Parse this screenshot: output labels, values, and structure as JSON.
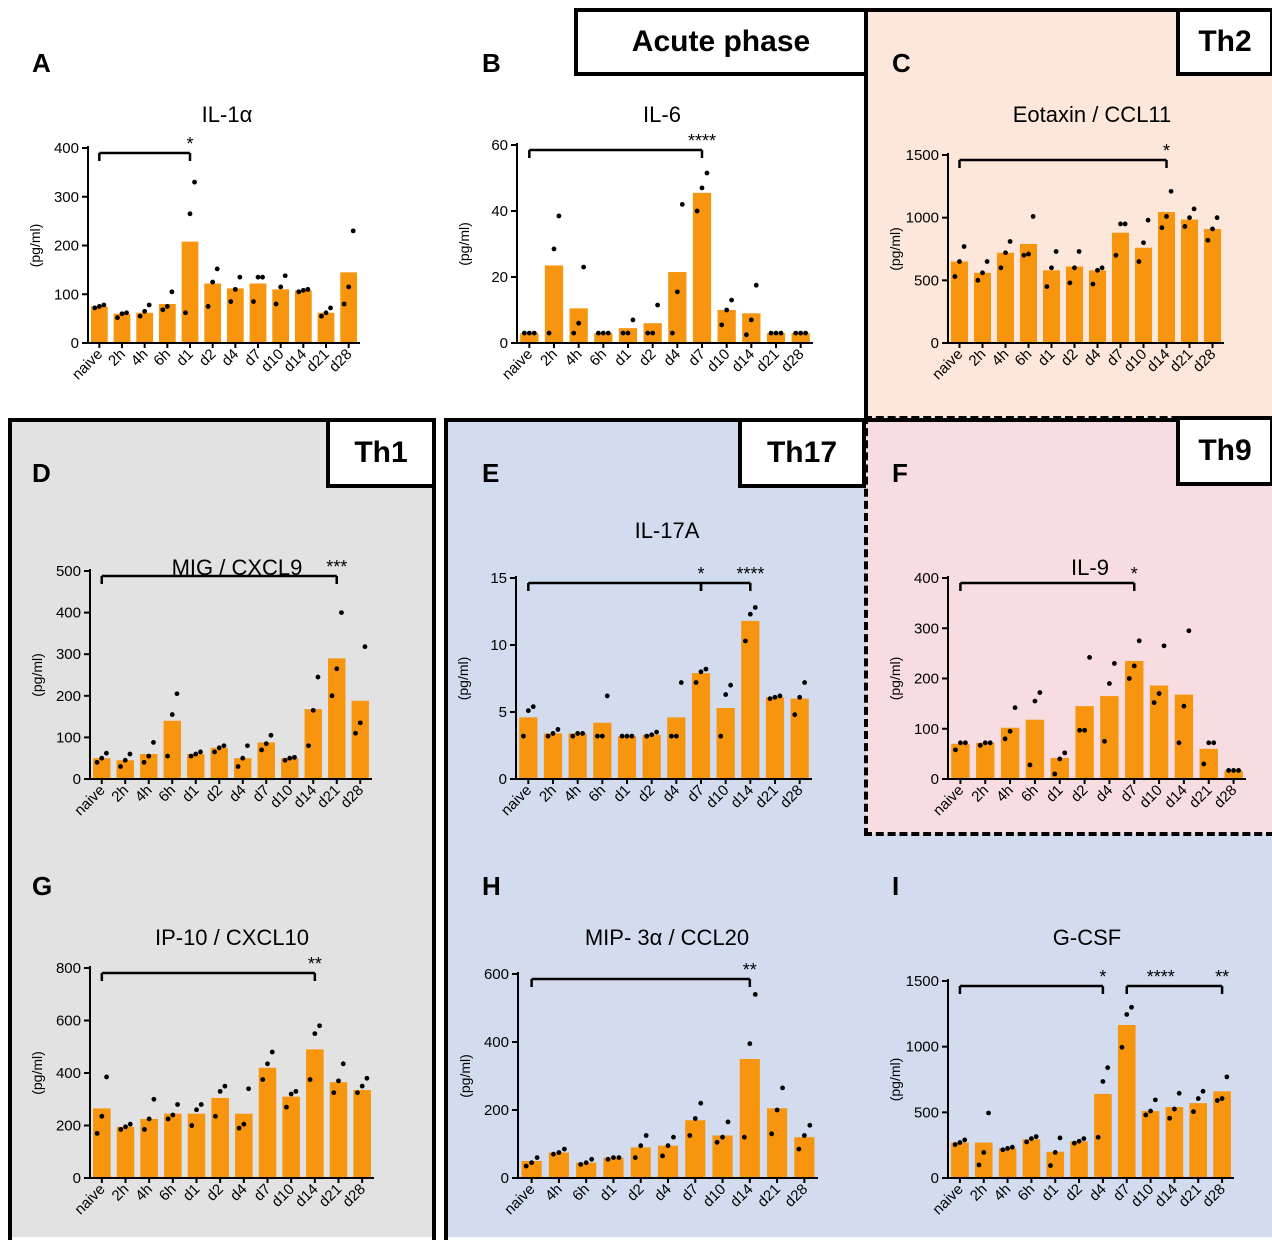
{
  "figure": {
    "ylabel_unit": "(pg/ml)",
    "bar_color": "#f7950f",
    "group_labels": {
      "acute": "Acute phase",
      "th2": "Th2",
      "th1": "Th1",
      "th17": "Th17",
      "th9": "Th9"
    },
    "group_colors": {
      "th2": "#fde7da",
      "th1": "#e2e2e2",
      "th17": "#d3dcef",
      "th9": "#f7dde2"
    }
  },
  "chart_data": [
    {
      "panel": "A",
      "type": "bar",
      "title": "IL-1α",
      "ylabel": "(pg/ml)",
      "ylim": [
        0,
        400
      ],
      "yticks": [
        0,
        100,
        200,
        300,
        400
      ],
      "categories": [
        "naive",
        "2h",
        "4h",
        "6h",
        "d1",
        "d2",
        "d4",
        "d7",
        "d10",
        "d14",
        "d21",
        "d28"
      ],
      "values": [
        75,
        60,
        62,
        80,
        208,
        122,
        112,
        122,
        110,
        108,
        62,
        145
      ],
      "points": [
        [
          72,
          75,
          78
        ],
        [
          52,
          60,
          62
        ],
        [
          55,
          65,
          78
        ],
        [
          68,
          75,
          105
        ],
        [
          62,
          265,
          330
        ],
        [
          75,
          125,
          152
        ],
        [
          85,
          110,
          135
        ],
        [
          85,
          135,
          135
        ],
        [
          80,
          115,
          138
        ],
        [
          105,
          108,
          110
        ],
        [
          55,
          62,
          72
        ],
        [
          80,
          115,
          230
        ]
      ],
      "significance": [
        {
          "from": "naive",
          "to": "d1",
          "label": "*"
        }
      ]
    },
    {
      "panel": "B",
      "type": "bar",
      "title": "IL-6",
      "ylabel": "(pg/ml)",
      "ylim": [
        0,
        60
      ],
      "yticks": [
        0,
        20,
        40,
        60
      ],
      "categories": [
        "naive",
        "2h",
        "4h",
        "6h",
        "d1",
        "d2",
        "d4",
        "d7",
        "d10",
        "d14",
        "d21",
        "d28"
      ],
      "values": [
        3,
        23.5,
        10.5,
        3,
        4.5,
        6,
        21.5,
        45.5,
        10,
        9,
        3,
        3
      ],
      "points": [
        [
          3,
          3,
          3
        ],
        [
          3,
          28.5,
          38.5
        ],
        [
          3,
          6,
          23
        ],
        [
          3,
          3,
          3
        ],
        [
          3,
          3,
          7
        ],
        [
          3,
          3,
          11.5
        ],
        [
          3,
          15.5,
          42
        ],
        [
          40,
          47,
          51.5
        ],
        [
          5.5,
          10,
          13
        ],
        [
          2.5,
          7,
          17.5
        ],
        [
          3,
          3,
          3
        ],
        [
          3,
          3,
          3
        ]
      ],
      "significance": [
        {
          "from": "naive",
          "to": "d7",
          "label": "****"
        }
      ]
    },
    {
      "panel": "C",
      "type": "bar",
      "title": "Eotaxin / CCL11",
      "ylabel": "(pg/ml)",
      "ylim": [
        0,
        1500
      ],
      "yticks": [
        0,
        500,
        1000,
        1500
      ],
      "categories": [
        "naive",
        "2h",
        "4h",
        "6h",
        "d1",
        "d2",
        "d4",
        "d7",
        "d10",
        "d14",
        "d21",
        "d28"
      ],
      "values": [
        650,
        560,
        720,
        790,
        580,
        610,
        580,
        880,
        760,
        1045,
        985,
        910
      ],
      "points": [
        [
          530,
          650,
          770
        ],
        [
          500,
          560,
          650
        ],
        [
          600,
          720,
          810
        ],
        [
          700,
          710,
          1010
        ],
        [
          450,
          600,
          730
        ],
        [
          480,
          600,
          730
        ],
        [
          470,
          580,
          600
        ],
        [
          700,
          950,
          950
        ],
        [
          650,
          800,
          980
        ],
        [
          920,
          1010,
          1210
        ],
        [
          930,
          1000,
          1070
        ],
        [
          820,
          910,
          1000
        ]
      ],
      "significance": [
        {
          "from": "naive",
          "to": "d14",
          "label": "*"
        }
      ]
    },
    {
      "panel": "D",
      "type": "bar",
      "title": "MIG / CXCL9",
      "ylabel": "(pg/ml)",
      "ylim": [
        0,
        500
      ],
      "yticks": [
        0,
        100,
        200,
        300,
        400,
        500
      ],
      "categories": [
        "naive",
        "2h",
        "4h",
        "6h",
        "d1",
        "d2",
        "d4",
        "d7",
        "d10",
        "d14",
        "d21",
        "d28"
      ],
      "values": [
        50,
        45,
        60,
        140,
        60,
        75,
        50,
        88,
        50,
        168,
        290,
        188
      ],
      "points": [
        [
          40,
          50,
          62
        ],
        [
          30,
          45,
          60
        ],
        [
          40,
          55,
          88
        ],
        [
          55,
          155,
          205
        ],
        [
          55,
          60,
          65
        ],
        [
          65,
          75,
          80
        ],
        [
          30,
          50,
          80
        ],
        [
          70,
          85,
          105
        ],
        [
          45,
          50,
          52
        ],
        [
          80,
          165,
          245
        ],
        [
          200,
          265,
          400
        ],
        [
          110,
          135,
          318
        ]
      ],
      "significance": [
        {
          "from": "naive",
          "to": "d21",
          "label": "***"
        }
      ]
    },
    {
      "panel": "E",
      "type": "bar",
      "title": "IL-17A",
      "ylabel": "(pg/ml)",
      "ylim": [
        0,
        15
      ],
      "yticks": [
        0,
        5,
        10,
        15
      ],
      "categories": [
        "naive",
        "2h",
        "4h",
        "6h",
        "d1",
        "d2",
        "d4",
        "d7",
        "d10",
        "d14",
        "d21",
        "d28"
      ],
      "values": [
        4.6,
        3.4,
        3.4,
        4.2,
        3.2,
        3.3,
        4.6,
        7.9,
        5.3,
        11.8,
        6.1,
        6.0
      ],
      "points": [
        [
          3.2,
          5.1,
          5.4
        ],
        [
          3.2,
          3.4,
          3.7
        ],
        [
          3.2,
          3.4,
          3.4
        ],
        [
          3.2,
          3.2,
          6.2
        ],
        [
          3.2,
          3.2,
          3.2
        ],
        [
          3.2,
          3.3,
          3.5
        ],
        [
          3.2,
          3.2,
          7.2
        ],
        [
          7.2,
          8.0,
          8.2
        ],
        [
          3.2,
          6.3,
          7.0
        ],
        [
          10.3,
          12.3,
          12.8
        ],
        [
          6.0,
          6.1,
          6.2
        ],
        [
          4.8,
          6.1,
          7.2
        ]
      ],
      "significance": [
        {
          "from": "naive",
          "to": "d7",
          "label": "*"
        },
        {
          "from": "d7",
          "to": "d14",
          "label": "****"
        }
      ]
    },
    {
      "panel": "F",
      "type": "bar",
      "title": "IL-9",
      "ylabel": "(pg/ml)",
      "ylim": [
        0,
        400
      ],
      "yticks": [
        0,
        100,
        200,
        300,
        400
      ],
      "categories": [
        "naive",
        "2h",
        "4h",
        "6h",
        "d1",
        "d2",
        "d4",
        "d7",
        "d10",
        "d14",
        "d21",
        "d28"
      ],
      "values": [
        70,
        72,
        102,
        118,
        42,
        145,
        165,
        235,
        186,
        168,
        60,
        17
      ],
      "points": [
        [
          58,
          72,
          72
        ],
        [
          67,
          72,
          72
        ],
        [
          80,
          95,
          142
        ],
        [
          28,
          155,
          172
        ],
        [
          10,
          40,
          52
        ],
        [
          97,
          97,
          242
        ],
        [
          75,
          190,
          230
        ],
        [
          200,
          225,
          275
        ],
        [
          152,
          170,
          265
        ],
        [
          72,
          145,
          295
        ],
        [
          30,
          72,
          72
        ],
        [
          17,
          17,
          17
        ]
      ],
      "significance": [
        {
          "from": "naive",
          "to": "d7",
          "label": "*"
        }
      ]
    },
    {
      "panel": "G",
      "type": "bar",
      "title": "IP-10 / CXCL10",
      "ylabel": "(pg/ml)",
      "ylim": [
        0,
        800
      ],
      "yticks": [
        0,
        200,
        400,
        600,
        800
      ],
      "categories": [
        "naive",
        "2h",
        "4h",
        "6h",
        "d1",
        "d2",
        "d4",
        "d7",
        "d10",
        "d14",
        "d21",
        "d28"
      ],
      "values": [
        265,
        195,
        225,
        245,
        245,
        305,
        245,
        420,
        310,
        490,
        365,
        335
      ],
      "points": [
        [
          170,
          235,
          385
        ],
        [
          185,
          195,
          205
        ],
        [
          185,
          225,
          300
        ],
        [
          225,
          240,
          280
        ],
        [
          200,
          260,
          280
        ],
        [
          235,
          330,
          350
        ],
        [
          190,
          205,
          340
        ],
        [
          375,
          435,
          480
        ],
        [
          270,
          320,
          330
        ],
        [
          375,
          550,
          580
        ],
        [
          325,
          370,
          435
        ],
        [
          325,
          350,
          380
        ]
      ],
      "significance": [
        {
          "from": "naive",
          "to": "d14",
          "label": "**"
        }
      ]
    },
    {
      "panel": "H",
      "type": "bar",
      "title": "MIP- 3α / CCL20",
      "ylabel": "(pg/ml)",
      "ylim": [
        0,
        600
      ],
      "yticks": [
        0,
        200,
        400,
        600
      ],
      "categories": [
        "naive",
        "4h",
        "6h",
        "d1",
        "d2",
        "d4",
        "d7",
        "d10",
        "d14",
        "d21",
        "d28"
      ],
      "values": [
        50,
        75,
        45,
        60,
        90,
        95,
        170,
        125,
        350,
        205,
        120
      ],
      "points": [
        [
          35,
          45,
          60
        ],
        [
          70,
          75,
          85
        ],
        [
          40,
          45,
          55
        ],
        [
          55,
          60,
          60
        ],
        [
          60,
          95,
          125
        ],
        [
          65,
          95,
          120
        ],
        [
          125,
          175,
          220
        ],
        [
          105,
          120,
          165
        ],
        [
          120,
          395,
          540
        ],
        [
          130,
          200,
          265
        ],
        [
          85,
          125,
          155
        ]
      ],
      "significance": [
        {
          "from": "naive",
          "to": "d14",
          "label": "**"
        }
      ]
    },
    {
      "panel": "I",
      "type": "bar",
      "title": "G-CSF",
      "ylabel": "(pg/ml)",
      "ylim": [
        0,
        1500
      ],
      "yticks": [
        0,
        500,
        1000,
        1500
      ],
      "categories": [
        "naive",
        "2h",
        "4h",
        "6h",
        "d1",
        "d2",
        "d4",
        "d7",
        "d10",
        "d14",
        "d21",
        "d28"
      ],
      "values": [
        270,
        270,
        225,
        295,
        200,
        280,
        640,
        1165,
        510,
        540,
        570,
        660
      ],
      "points": [
        [
          255,
          270,
          290
        ],
        [
          100,
          195,
          495
        ],
        [
          215,
          225,
          235
        ],
        [
          275,
          300,
          315
        ],
        [
          95,
          195,
          305
        ],
        [
          265,
          280,
          300
        ],
        [
          310,
          735,
          840
        ],
        [
          995,
          1245,
          1300
        ],
        [
          480,
          510,
          595
        ],
        [
          455,
          525,
          645
        ],
        [
          505,
          605,
          660
        ],
        [
          590,
          605,
          770
        ]
      ],
      "significance": [
        {
          "from": "naive",
          "to": "d4",
          "label": "*"
        },
        {
          "from": "d7",
          "to": "d28",
          "label": "**"
        }
      ],
      "significance_extra_label": "****"
    }
  ]
}
